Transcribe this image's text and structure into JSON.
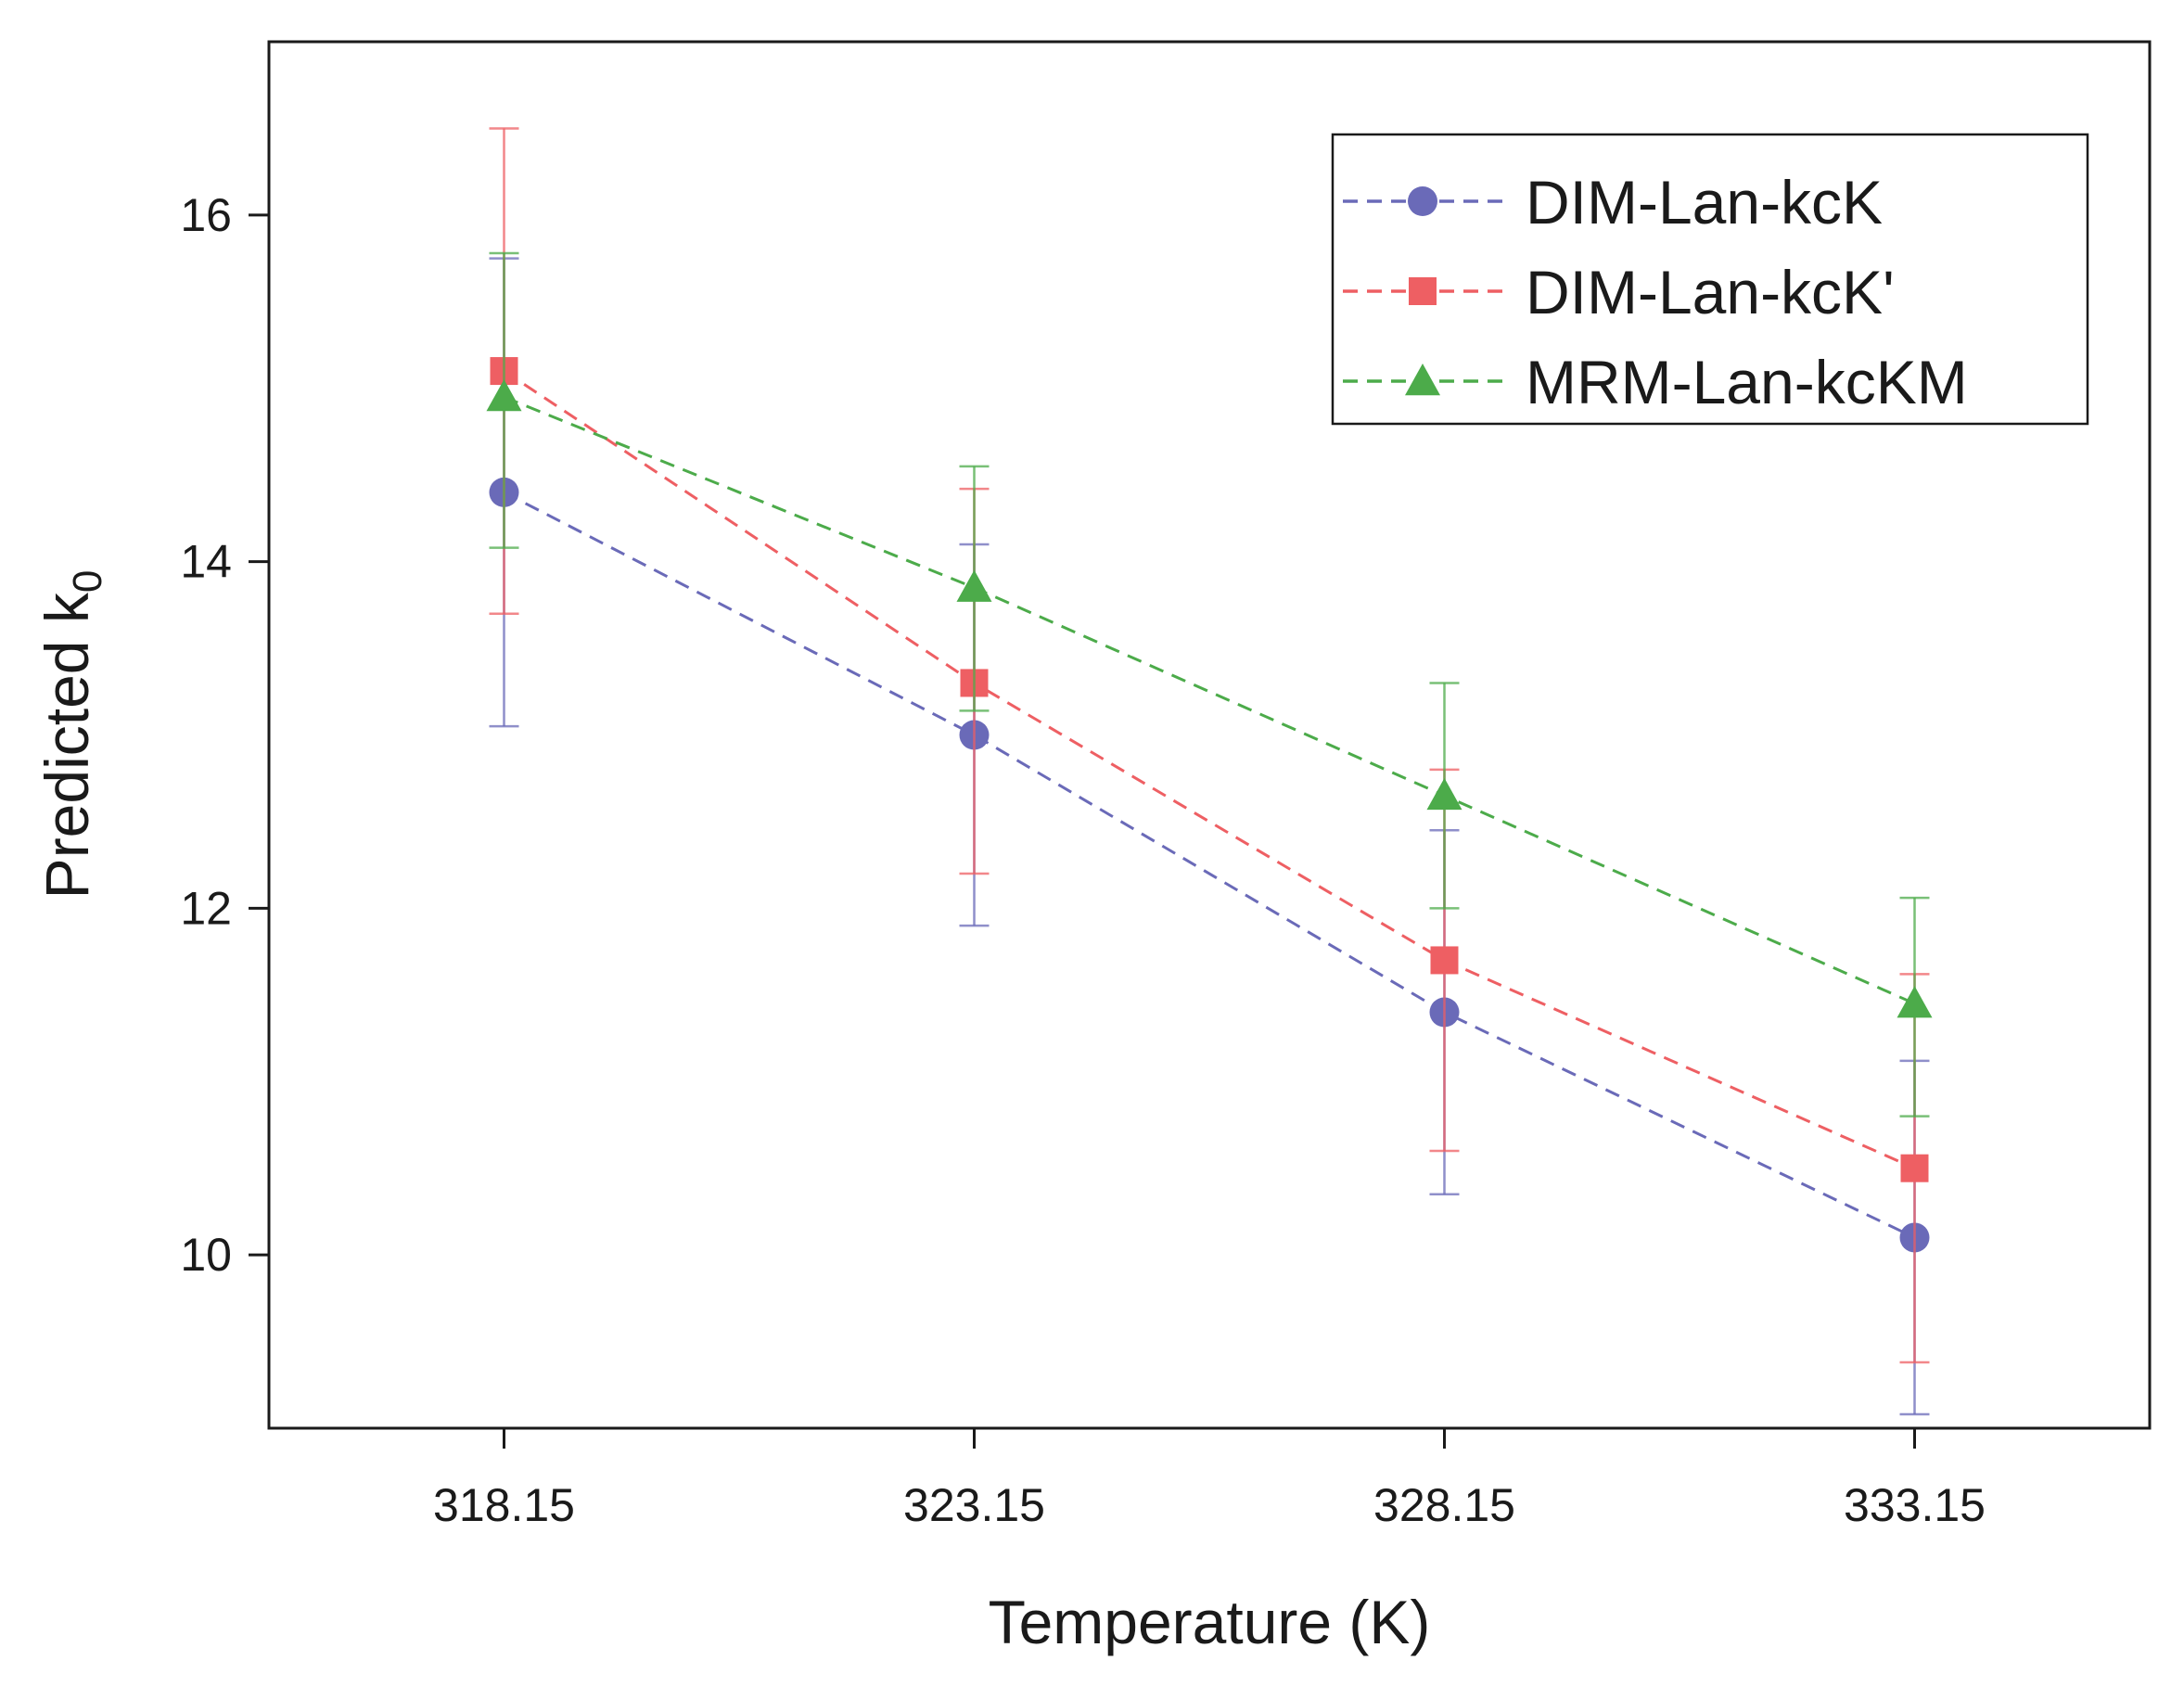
{
  "chart_data": {
    "type": "line",
    "title": "",
    "xlabel": "Temperature (K)",
    "ylabel": "Predicted k",
    "ylabel_subscript": "0",
    "x": [
      318.15,
      323.15,
      328.15,
      333.15
    ],
    "x_tick_labels": [
      "318.15",
      "323.15",
      "328.15",
      "333.15"
    ],
    "xlim": [
      315.65,
      335.65
    ],
    "ylim": [
      9.0,
      17.0
    ],
    "yticks": [
      10,
      12,
      14,
      16
    ],
    "y_tick_labels": [
      "10",
      "12",
      "14",
      "16"
    ],
    "grid": false,
    "legend_position": "top-right",
    "series": [
      {
        "name": "DIM-Lan-kcK",
        "color": "#6a6ab8",
        "marker": "circle",
        "line_style": "dashed",
        "values": [
          14.4,
          13.0,
          11.4,
          10.1
        ],
        "error_low": [
          13.05,
          11.9,
          10.35,
          9.08
        ],
        "error_high": [
          15.75,
          14.1,
          12.45,
          11.12
        ]
      },
      {
        "name": "DIM-Lan-kcK'",
        "color": "#ee5f63",
        "marker": "square",
        "line_style": "dashed",
        "values": [
          15.1,
          13.3,
          11.7,
          10.5
        ],
        "error_low": [
          13.7,
          12.2,
          10.6,
          9.38
        ],
        "error_high": [
          16.5,
          14.42,
          12.8,
          11.62
        ]
      },
      {
        "name": "MRM-Lan-kcKM",
        "color": "#4cab4a",
        "marker": "triangle",
        "line_style": "dashed",
        "values": [
          14.95,
          13.85,
          12.65,
          11.45
        ],
        "error_low": [
          14.08,
          13.14,
          12.0,
          10.8
        ],
        "error_high": [
          15.78,
          14.55,
          13.3,
          12.06
        ]
      }
    ]
  }
}
